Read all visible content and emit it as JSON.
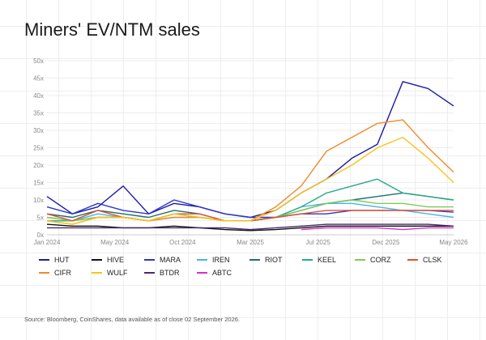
{
  "title": "Miners' EV/NTM sales",
  "source_note": "Source: Bloomberg, CoinShares, data available as of close 02 September 2026.",
  "chart_data": {
    "type": "line",
    "title": "Miners' EV/NTM sales",
    "xlabel": "",
    "ylabel": "",
    "x_ticks": [
      "Jan 2024",
      "May 2024",
      "Oct 2024",
      "Mar 2025",
      "Jul 2025",
      "Dec 2025",
      "May 2026"
    ],
    "y_ticks": [
      "0x",
      "5x",
      "10x",
      "15x",
      "20x",
      "25x",
      "30x",
      "35x",
      "40x",
      "45x",
      "50x"
    ],
    "ylim": [
      0,
      50
    ],
    "grid": true,
    "legend_position": "bottom",
    "x": [
      "Jan 2024",
      "Mar 2024",
      "May 2024",
      "Jul 2024",
      "Aug 2024",
      "Oct 2024",
      "Dec 2024",
      "Mar 2025",
      "May 2025",
      "Jul 2025",
      "Sep 2025",
      "Dec 2025",
      "Feb 2026",
      "Apr 2026",
      "May 2026",
      "Jul 2026",
      "Sep 2026"
    ],
    "series": [
      {
        "name": "HUT",
        "color": "#1d1aa8",
        "values": [
          11,
          6,
          8,
          14,
          6,
          9,
          8,
          6,
          5,
          7,
          12,
          16,
          22,
          26,
          44,
          42,
          37
        ]
      },
      {
        "name": "HIVE",
        "color": "#111111",
        "values": [
          3,
          2.5,
          2.5,
          2,
          2,
          2.5,
          2,
          1.5,
          1.2,
          1.5,
          2,
          2.5,
          2.5,
          2.5,
          2.5,
          2.5,
          2.5
        ]
      },
      {
        "name": "MARA",
        "color": "#2f35c9",
        "values": [
          8,
          6,
          9,
          7,
          6,
          10,
          8,
          6,
          5,
          5,
          6,
          6,
          7,
          7,
          7,
          7,
          6.5
        ]
      },
      {
        "name": "IREN",
        "color": "#4ab4e8",
        "values": [
          5,
          4,
          6,
          5,
          4,
          5,
          5,
          4,
          4,
          5,
          8,
          9,
          9,
          8,
          7,
          6,
          5
        ]
      },
      {
        "name": "RIOT",
        "color": "#1e6f72",
        "values": [
          6,
          5,
          7,
          6,
          5,
          7,
          6,
          4,
          4,
          5,
          7,
          9,
          10,
          11,
          12,
          11,
          10
        ]
      },
      {
        "name": "KEEL",
        "color": "#2aa88a",
        "values": [
          4,
          4,
          5,
          5,
          4,
          6,
          5,
          4,
          4,
          5,
          8,
          12,
          14,
          16,
          12,
          11,
          10
        ]
      },
      {
        "name": "CORZ",
        "color": "#7ccc5a",
        "values": [
          5,
          4,
          5,
          5,
          4,
          6,
          5,
          4,
          4,
          5,
          7,
          9,
          10,
          9,
          9,
          8,
          8
        ]
      },
      {
        "name": "CLSK",
        "color": "#e2522d",
        "values": [
          6,
          4,
          7,
          5,
          4,
          6,
          6,
          4,
          4,
          5,
          6,
          7,
          7,
          7,
          7,
          7,
          7
        ]
      },
      {
        "name": "CIFR",
        "color": "#f08a2a",
        "values": [
          4,
          3,
          5,
          5,
          4,
          5,
          5,
          4,
          4,
          8,
          14,
          24,
          28,
          32,
          33,
          25,
          18
        ]
      },
      {
        "name": "WULF",
        "color": "#f5c518",
        "values": [
          4,
          3,
          5,
          5,
          4,
          6,
          5,
          4,
          4,
          7,
          12,
          16,
          20,
          25,
          28,
          22,
          15
        ]
      },
      {
        "name": "BTDR",
        "color": "#4a2a6e",
        "values": [
          2,
          2,
          2,
          2,
          2,
          2,
          2,
          2,
          1.5,
          2,
          2.5,
          3,
          3,
          3,
          3,
          3,
          2.5
        ]
      },
      {
        "name": "ABTC",
        "color": "#d230c8",
        "values": [
          null,
          null,
          null,
          null,
          null,
          null,
          null,
          null,
          null,
          null,
          1.5,
          2,
          2,
          2,
          1.5,
          2,
          2
        ]
      }
    ]
  }
}
